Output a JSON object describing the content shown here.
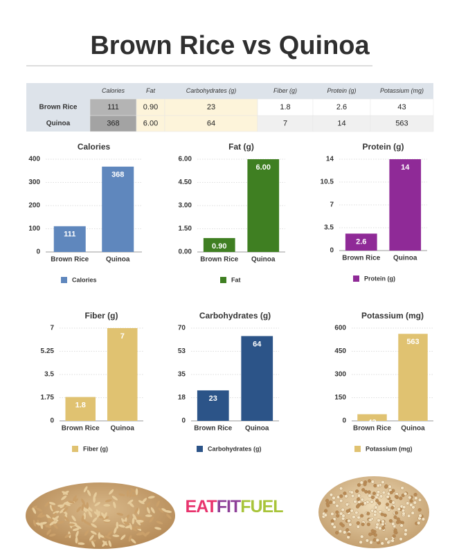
{
  "header": {
    "title": "Brown Rice vs Quinoa"
  },
  "logo": [
    "EAT",
    "FIT",
    "FUEL"
  ],
  "table": {
    "columns": [
      "Calories",
      "Fat",
      "Carbohydrates (g)",
      "Fiber (g)",
      "Protein (g)",
      "Potassium (mg)"
    ],
    "rows": [
      {
        "label": "Brown Rice",
        "cells": [
          "111",
          "0.90",
          "23",
          "1.8",
          "2.6",
          "43"
        ]
      },
      {
        "label": "Quinoa",
        "cells": [
          "368",
          "6.00",
          "64",
          "7",
          "14",
          "563"
        ]
      }
    ]
  },
  "chart_data": [
    {
      "type": "bar",
      "title": "Calories",
      "categories": [
        "Brown Rice",
        "Quinoa"
      ],
      "series": [
        {
          "name": "Calories",
          "color": "#5f87bd",
          "values": [
            111,
            368
          ]
        }
      ],
      "ylim": [
        0,
        400
      ],
      "yticks": [
        0,
        100,
        200,
        300,
        400
      ],
      "grid": true
    },
    {
      "type": "bar",
      "title": "Fat (g)",
      "categories": [
        "Brown Rice",
        "Quinoa"
      ],
      "series": [
        {
          "name": "Fat",
          "color": "#3f7f22",
          "values": [
            0.9,
            6
          ],
          "value_labels": [
            "0.90",
            "6.00"
          ]
        }
      ],
      "ylim": [
        0,
        6
      ],
      "yticks": [
        {
          "value": 0,
          "label": "0.00"
        },
        {
          "value": 1.5,
          "label": "1.50"
        },
        {
          "value": 3,
          "label": "3.00"
        },
        {
          "value": 4.5,
          "label": "4.50"
        },
        {
          "value": 6,
          "label": "6.00"
        }
      ],
      "grid": true
    },
    {
      "type": "bar",
      "title": "Protein (g)",
      "categories": [
        "Brown Rice",
        "Quinoa"
      ],
      "series": [
        {
          "name": "Protein (g)",
          "color": "#8f2a97",
          "values": [
            2.6,
            14
          ]
        }
      ],
      "ylim": [
        0,
        14
      ],
      "yticks": [
        0,
        3.5,
        7,
        10.5,
        14
      ],
      "grid": true
    },
    {
      "type": "bar",
      "title": "Fiber (g)",
      "categories": [
        "Brown Rice",
        "Quinoa"
      ],
      "series": [
        {
          "name": "Fiber (g)",
          "color": "#e0c271",
          "values": [
            1.8,
            7
          ]
        }
      ],
      "ylim": [
        0,
        7
      ],
      "yticks": [
        0,
        1.75,
        3.5,
        5.25,
        7
      ],
      "grid": true
    },
    {
      "type": "bar",
      "title": "Carbohydrates (g)",
      "categories": [
        "Brown Rice",
        "Quinoa"
      ],
      "series": [
        {
          "name": "Carbohydrates (g)",
          "color": "#2c5488",
          "values": [
            23,
            64
          ]
        }
      ],
      "ylim": [
        0,
        70
      ],
      "yticks": [
        0,
        {
          "value": 17.5,
          "label": "18"
        },
        35,
        {
          "value": 52.5,
          "label": "53"
        },
        70
      ],
      "grid": true
    },
    {
      "type": "bar",
      "title": "Potassium (mg)",
      "categories": [
        "Brown Rice",
        "Quinoa"
      ],
      "series": [
        {
          "name": "Potassium (mg)",
          "color": "#e0c271",
          "values": [
            43,
            563
          ]
        }
      ],
      "ylim": [
        0,
        600
      ],
      "yticks": [
        0,
        150,
        300,
        450,
        600
      ],
      "grid": true
    }
  ]
}
